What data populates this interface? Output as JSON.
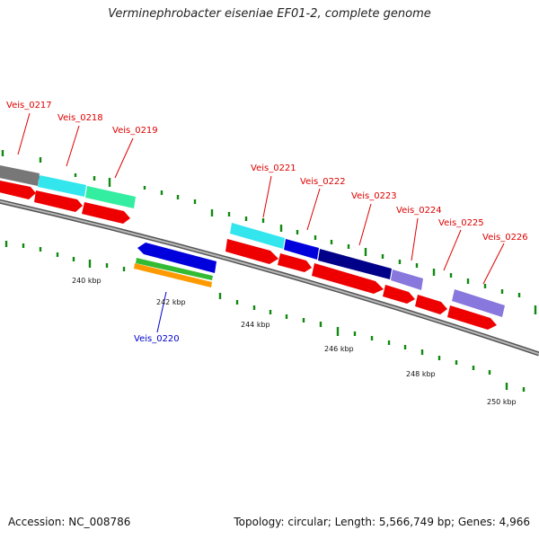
{
  "title": "Verminephrobacter eiseniae EF01-2, complete genome",
  "footer": {
    "accession": "Accession: NC_008786",
    "topology": "Topology: circular; Length: 5,566,749 bp; Genes: 4,966"
  },
  "scale_labels": [
    "240 kbp",
    "242 kbp",
    "244 kbp",
    "246 kbp",
    "248 kbp",
    "250 kbp"
  ],
  "gene_labels": [
    {
      "id": "Veis_0217",
      "color": "#dd0000"
    },
    {
      "id": "Veis_0218",
      "color": "#dd0000"
    },
    {
      "id": "Veis_0219",
      "color": "#dd0000"
    },
    {
      "id": "Veis_0221",
      "color": "#dd0000"
    },
    {
      "id": "Veis_0222",
      "color": "#dd0000"
    },
    {
      "id": "Veis_0223",
      "color": "#dd0000"
    },
    {
      "id": "Veis_0224",
      "color": "#dd0000"
    },
    {
      "id": "Veis_0225",
      "color": "#dd0000"
    },
    {
      "id": "Veis_0226",
      "color": "#dd0000"
    },
    {
      "id": "Veis_0220",
      "color": "#0000cc"
    }
  ],
  "colors": {
    "backbone": "#8a8a8a",
    "cds": "#ee0000",
    "tick": "#118811",
    "cyan": "#33e6ee",
    "mint": "#33eea0",
    "blue": "#0000dd",
    "navy": "#000088",
    "lavender": "#8877dd",
    "gray": "#777777",
    "green": "#33bb33",
    "orange": "#ff9900"
  }
}
